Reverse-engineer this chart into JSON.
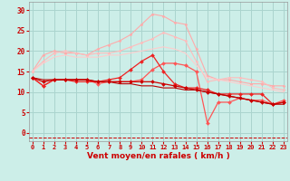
{
  "title": "",
  "xlabel": "Vent moyen/en rafales ( km/h )",
  "ylabel": "",
  "x": [
    0,
    1,
    2,
    3,
    4,
    5,
    6,
    7,
    8,
    9,
    10,
    11,
    12,
    13,
    14,
    15,
    16,
    17,
    18,
    19,
    20,
    21,
    22,
    23
  ],
  "background_color": "#cceee8",
  "grid_color": "#aad4ce",
  "series": [
    {
      "color": "#ffaaaa",
      "linewidth": 0.8,
      "marker": "D",
      "markersize": 1.5,
      "data": [
        15.0,
        19.0,
        20.0,
        19.5,
        19.5,
        19.0,
        20.5,
        21.5,
        22.5,
        24.0,
        26.5,
        29.0,
        28.5,
        27.0,
        26.5,
        20.5,
        14.0,
        13.0,
        13.0,
        12.5,
        12.0,
        12.0,
        11.5,
        11.5
      ]
    },
    {
      "color": "#ffbbbb",
      "linewidth": 0.8,
      "marker": "D",
      "markersize": 1.5,
      "data": [
        15.0,
        17.5,
        19.5,
        20.0,
        19.5,
        19.0,
        19.5,
        19.5,
        20.0,
        21.0,
        22.0,
        23.0,
        24.5,
        23.5,
        22.5,
        17.5,
        12.5,
        13.0,
        13.5,
        13.5,
        13.0,
        12.5,
        11.0,
        10.5
      ]
    },
    {
      "color": "#ffcccc",
      "linewidth": 0.8,
      "marker": null,
      "markersize": 0,
      "data": [
        15.0,
        17.0,
        18.5,
        19.0,
        18.5,
        18.5,
        18.5,
        19.0,
        19.0,
        19.5,
        20.0,
        20.5,
        21.0,
        20.5,
        19.5,
        16.5,
        13.5,
        13.0,
        12.5,
        12.0,
        11.5,
        11.0,
        10.5,
        10.0
      ]
    },
    {
      "color": "#ff5555",
      "linewidth": 0.9,
      "marker": "D",
      "markersize": 2,
      "data": [
        13.5,
        11.5,
        13.0,
        13.0,
        13.0,
        13.0,
        12.0,
        12.5,
        12.5,
        12.5,
        13.0,
        15.5,
        17.0,
        17.0,
        16.5,
        15.0,
        2.5,
        7.5,
        7.5,
        8.5,
        8.0,
        8.0,
        7.0,
        8.0
      ]
    },
    {
      "color": "#ee2222",
      "linewidth": 0.9,
      "marker": "D",
      "markersize": 2,
      "data": [
        13.5,
        11.5,
        13.0,
        13.0,
        12.5,
        12.5,
        12.5,
        13.0,
        13.5,
        15.5,
        17.5,
        19.0,
        15.0,
        12.0,
        11.0,
        11.0,
        10.5,
        9.5,
        9.5,
        9.5,
        9.5,
        9.5,
        7.0,
        7.5
      ]
    },
    {
      "color": "#cc0000",
      "linewidth": 0.9,
      "marker": "D",
      "markersize": 2,
      "data": [
        13.5,
        12.5,
        13.0,
        13.0,
        13.0,
        13.0,
        12.5,
        12.5,
        12.5,
        12.5,
        12.5,
        12.5,
        12.0,
        11.5,
        11.0,
        10.5,
        10.0,
        9.5,
        9.0,
        8.5,
        8.0,
        7.5,
        7.0,
        7.5
      ]
    },
    {
      "color": "#bb0000",
      "linewidth": 0.8,
      "marker": null,
      "markersize": 0,
      "data": [
        13.5,
        13.0,
        13.0,
        13.0,
        13.0,
        13.0,
        12.5,
        12.5,
        12.0,
        12.0,
        11.5,
        11.5,
        11.0,
        11.0,
        10.5,
        10.5,
        10.0,
        9.5,
        9.0,
        8.5,
        8.0,
        7.5,
        7.0,
        7.0
      ]
    }
  ],
  "dash_y": -1.2,
  "dash_color": "#cc0000",
  "xlim": [
    -0.3,
    23.3
  ],
  "ylim": [
    -2,
    32
  ],
  "yticks": [
    0,
    5,
    10,
    15,
    20,
    25,
    30
  ],
  "xticks": [
    0,
    1,
    2,
    3,
    4,
    5,
    6,
    7,
    8,
    9,
    10,
    11,
    12,
    13,
    14,
    15,
    16,
    17,
    18,
    19,
    20,
    21,
    22,
    23
  ],
  "xlabel_fontsize": 6.5,
  "ytick_fontsize": 5.5,
  "xtick_fontsize": 5.0
}
